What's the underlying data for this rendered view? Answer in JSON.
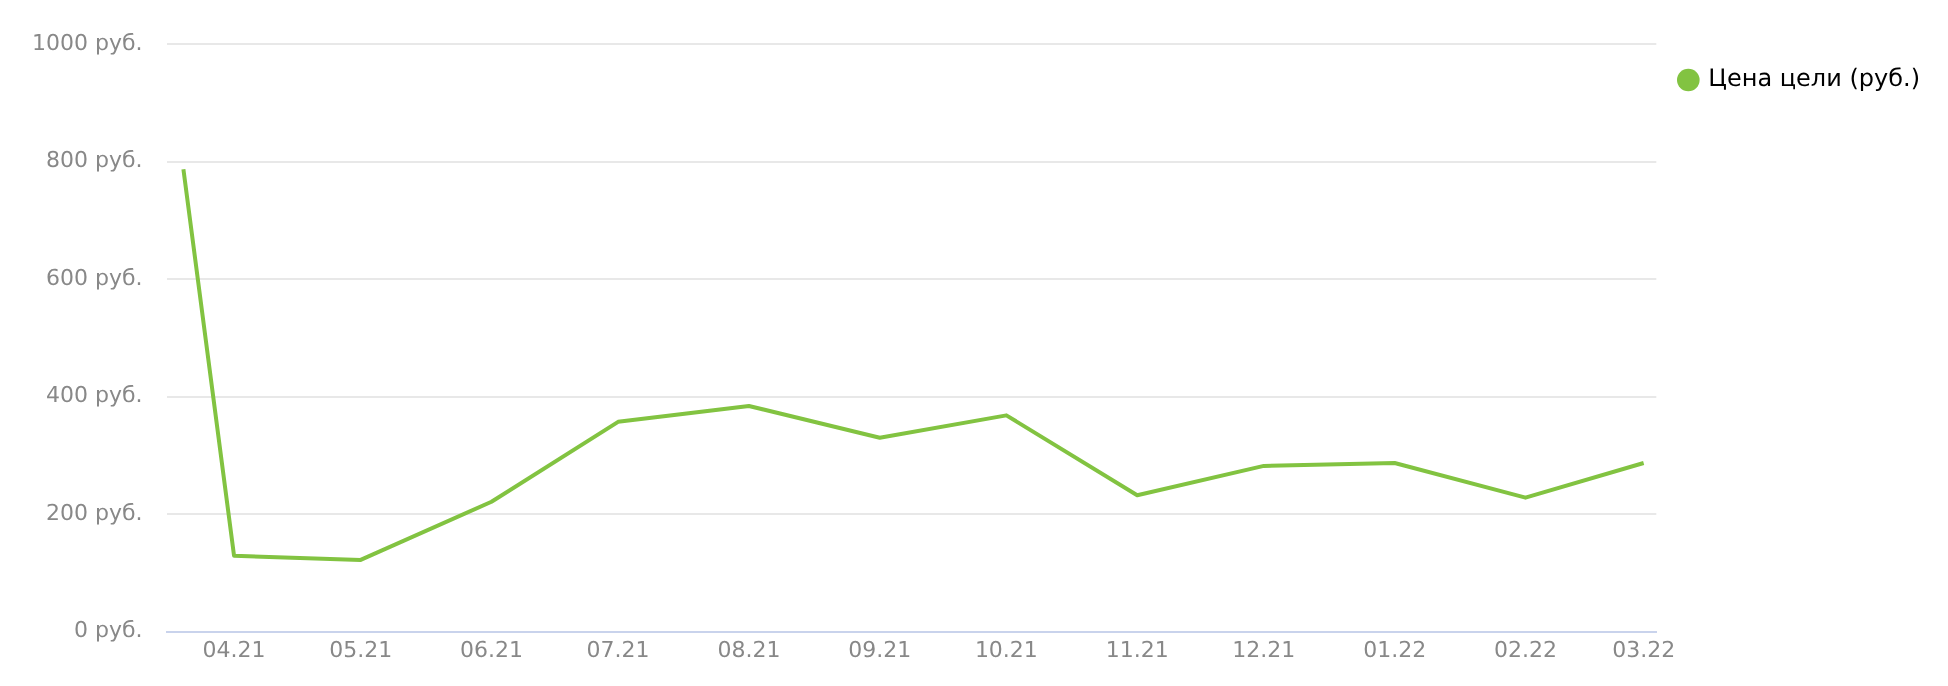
{
  "chart_data": {
    "type": "line",
    "x": [
      "2021-03-20",
      "2021-04-01",
      "2021-05-01",
      "2021-06-01",
      "2021-07-01",
      "2021-08-01",
      "2021-09-01",
      "2021-10-01",
      "2021-11-01",
      "2021-12-01",
      "2022-01-01",
      "2022-02-01",
      "2022-03-01"
    ],
    "series": [
      {
        "name": "Цена цели (руб.)",
        "color": "#82c341",
        "values": [
          787,
          129,
          122,
          221,
          357,
          384,
          330,
          368,
          232,
          282,
          287,
          228,
          287
        ]
      }
    ],
    "xlim": [
      "2021-03-16",
      "2022-03-04"
    ],
    "xticks": [
      {
        "value": "2021-04-01",
        "label": "04.21"
      },
      {
        "value": "2021-05-01",
        "label": "05.21"
      },
      {
        "value": "2021-06-01",
        "label": "06.21"
      },
      {
        "value": "2021-07-01",
        "label": "07.21"
      },
      {
        "value": "2021-08-01",
        "label": "08.21"
      },
      {
        "value": "2021-09-01",
        "label": "09.21"
      },
      {
        "value": "2021-10-01",
        "label": "10.21"
      },
      {
        "value": "2021-11-01",
        "label": "11.21"
      },
      {
        "value": "2021-12-01",
        "label": "12.21"
      },
      {
        "value": "2022-01-01",
        "label": "01.22"
      },
      {
        "value": "2022-02-01",
        "label": "02.22"
      },
      {
        "value": "2022-03-01",
        "label": "03.22"
      }
    ],
    "ylim": [
      0,
      1000
    ],
    "yticks": [
      {
        "value": 0,
        "label": "0 руб."
      },
      {
        "value": 200,
        "label": "200 руб."
      },
      {
        "value": 400,
        "label": "400 руб."
      },
      {
        "value": 600,
        "label": "600 руб."
      },
      {
        "value": 800,
        "label": "800 руб."
      },
      {
        "value": 1000,
        "label": "1000 руб."
      }
    ],
    "grid": "y",
    "legend": "top right",
    "marker": "none",
    "line_style": "solid"
  }
}
